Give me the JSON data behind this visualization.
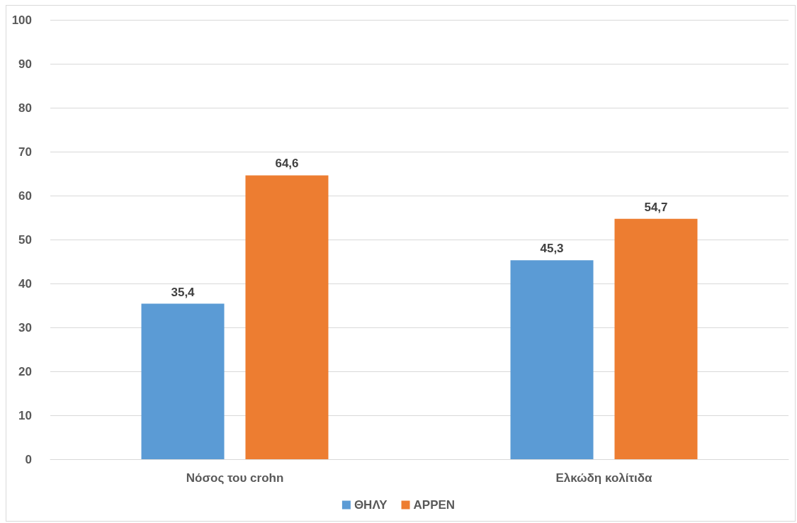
{
  "chart_data": {
    "type": "bar",
    "categories": [
      "Νόσος του crohn",
      "Ελκώδη κολίτιδα"
    ],
    "series": [
      {
        "name": "ΘΗΛΥ",
        "color": "#5b9bd5",
        "values": [
          35.4,
          45.3
        ],
        "value_labels": [
          "35,4",
          "45,3"
        ]
      },
      {
        "name": "ΑΡΡΕΝ",
        "color": "#ed7d31",
        "values": [
          64.6,
          54.7
        ],
        "value_labels": [
          "64,6",
          "54,7"
        ]
      }
    ],
    "ylim": [
      0,
      100
    ],
    "yticks": [
      0,
      10,
      20,
      30,
      40,
      50,
      60,
      70,
      80,
      90,
      100
    ],
    "grid": "y",
    "legend": "bottom"
  }
}
